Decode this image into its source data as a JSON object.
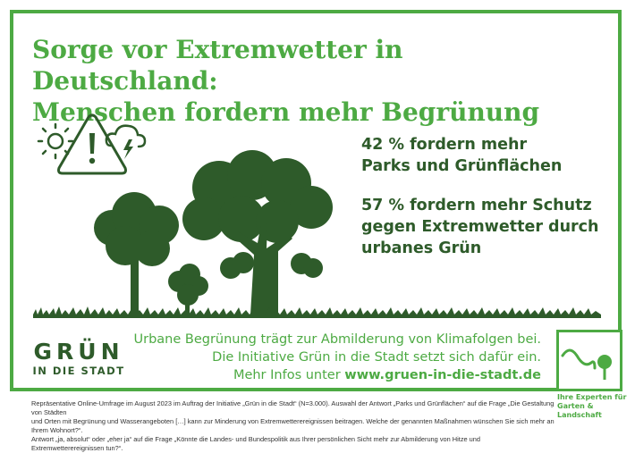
{
  "headline": {
    "line1": "Sorge vor Extremwetter in Deutschland:",
    "line2": "Menschen fordern mehr Begrünung"
  },
  "stats": [
    {
      "line1": "42 % fordern mehr",
      "line2": "Parks und Grünflächen",
      "line3": ""
    },
    {
      "line1": "57 % fordern mehr Schutz",
      "line2": "gegen Extremwetter durch",
      "line3": "urbanes Grün"
    }
  ],
  "info": {
    "line1": "Urbane Begrünung trägt zur Abmilderung von Klimafolgen bei.",
    "line2": "Die Initiative Grün in die Stadt setzt sich dafür ein.",
    "line3_prefix": "Mehr Infos unter ",
    "url": "www.gruen-in-die-stadt.de"
  },
  "logo_gruen": {
    "word": "GRÜN",
    "sub": "IN DIE STADT"
  },
  "logo_experten": {
    "line1": "Ihre Experten für",
    "line2": "Garten & Landschaft"
  },
  "footnote": {
    "line1": "Repräsentative Online-Umfrage im August 2023 im Auftrag der Initiative „Grün in die Stadt“ (N=3.000). Auswahl der Antwort „Parks und Grünflächen“ auf die Frage „Die Gestaltung von Städten",
    "line2": "und Orten mit Begrünung und Wasserangeboten […] kann zur Minderung von Extremwetterereignissen beitragen. Welche der genannten Maßnahmen wünschen Sie sich mehr an Ihrem Wohnort?“.",
    "line3": "Antwort „ja, absolut“ oder „eher ja“ auf die Frage „Könnte die Landes- und Bundespolitik aus Ihrer persönlichen Sicht mehr zur Abmilderung von Hitze und Extremwetterereignissen tun?“."
  },
  "colors": {
    "green": "#4daa43",
    "dark_green": "#2e5b2a",
    "background": "#ffffff"
  },
  "icons": [
    "sun-icon",
    "warning-triangle-icon",
    "storm-cloud-icon",
    "tree-illustration",
    "hedge-logo-icon"
  ]
}
